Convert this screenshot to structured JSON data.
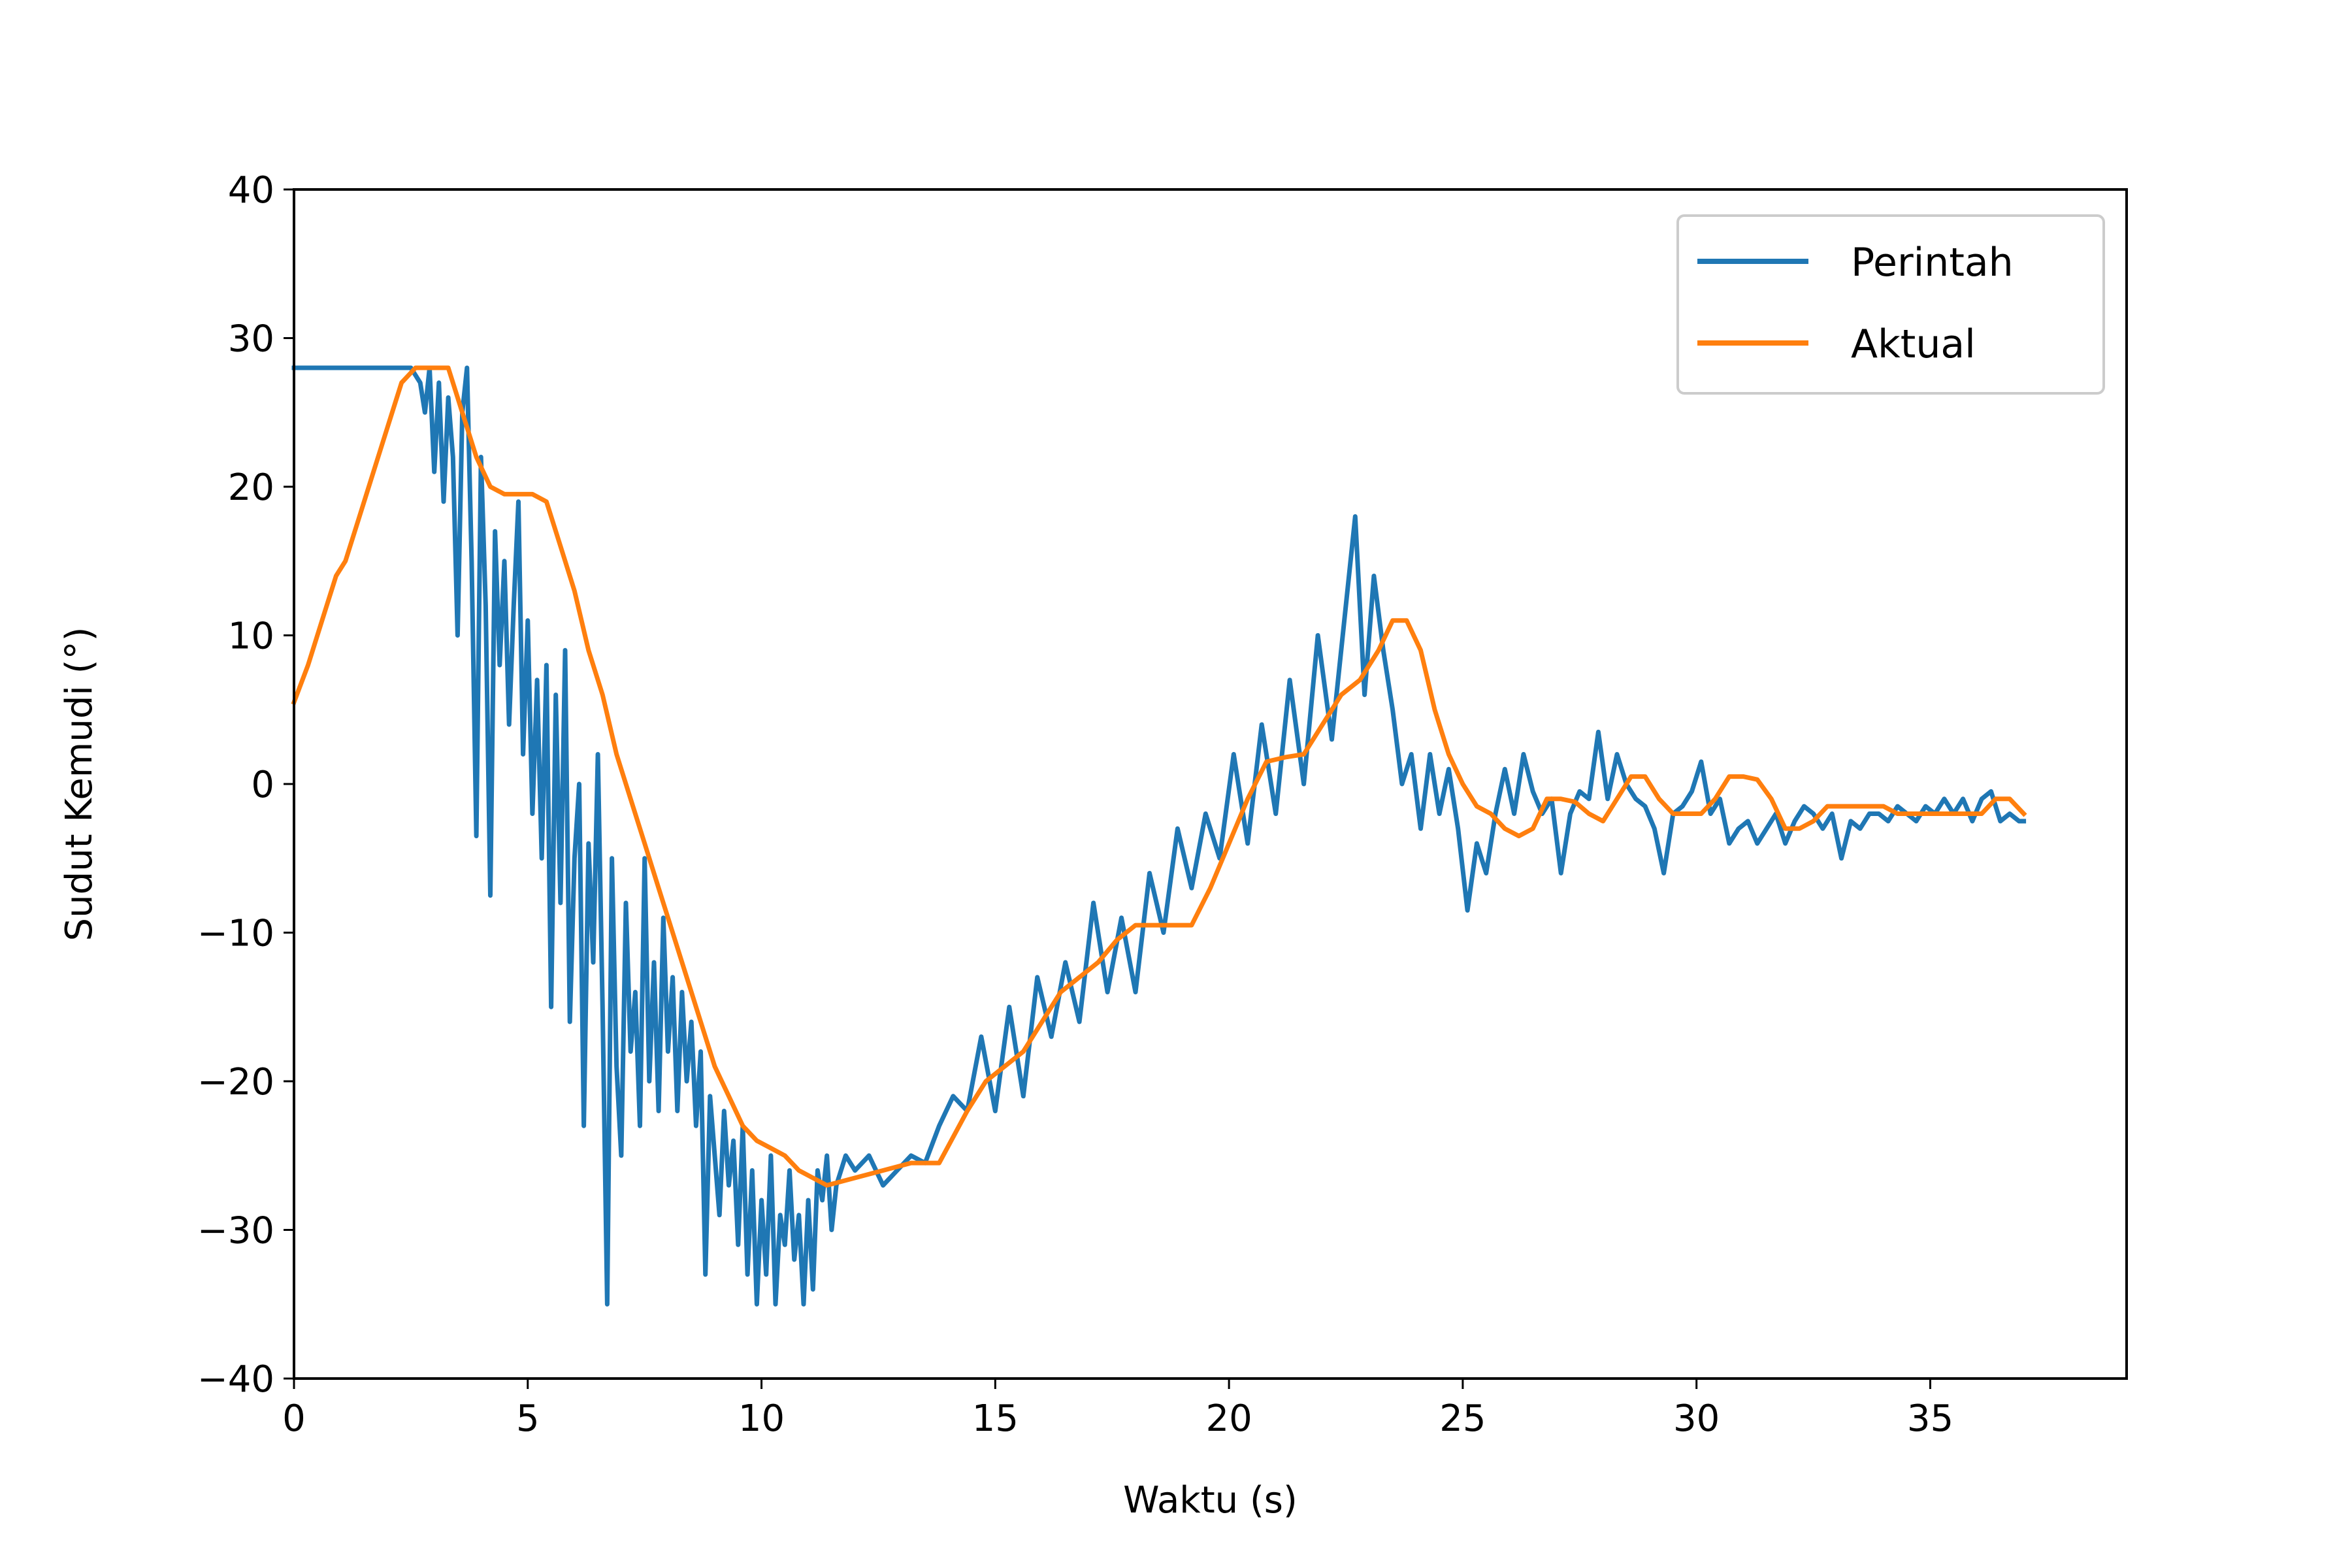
{
  "chart_data": {
    "type": "line",
    "title": "",
    "xlabel": "Waktu (s)",
    "ylabel": "Sudut Kemudi (°)",
    "xlim": [
      0,
      39.2
    ],
    "ylim": [
      -40,
      40
    ],
    "xticks": [
      0,
      5,
      10,
      15,
      20,
      25,
      30,
      35
    ],
    "yticks": [
      -40,
      -30,
      -20,
      -10,
      0,
      10,
      20,
      30,
      40
    ],
    "xtick_labels": [
      "0",
      "5",
      "10",
      "15",
      "20",
      "25",
      "30",
      "35"
    ],
    "ytick_labels": [
      "−40",
      "−30",
      "−20",
      "−10",
      "0",
      "10",
      "20",
      "30",
      "40"
    ],
    "grid": false,
    "legend_position": "top-right",
    "series": [
      {
        "name": "Perintah",
        "color": "#1f77b4",
        "points": [
          [
            0,
            28
          ],
          [
            2.5,
            28
          ],
          [
            2.7,
            27
          ],
          [
            2.8,
            25
          ],
          [
            2.9,
            28
          ],
          [
            3.0,
            21
          ],
          [
            3.1,
            27
          ],
          [
            3.2,
            19
          ],
          [
            3.3,
            26
          ],
          [
            3.4,
            22
          ],
          [
            3.5,
            10
          ],
          [
            3.6,
            25
          ],
          [
            3.7,
            28
          ],
          [
            3.8,
            15
          ],
          [
            3.9,
            -3.5
          ],
          [
            4.0,
            22
          ],
          [
            4.1,
            12
          ],
          [
            4.2,
            -7.5
          ],
          [
            4.3,
            17
          ],
          [
            4.4,
            8
          ],
          [
            4.5,
            15
          ],
          [
            4.6,
            4
          ],
          [
            4.7,
            12
          ],
          [
            4.8,
            19
          ],
          [
            4.9,
            2
          ],
          [
            5.0,
            11
          ],
          [
            5.1,
            -2
          ],
          [
            5.2,
            7
          ],
          [
            5.3,
            -5
          ],
          [
            5.4,
            8
          ],
          [
            5.5,
            -15
          ],
          [
            5.6,
            6
          ],
          [
            5.7,
            -8
          ],
          [
            5.8,
            9
          ],
          [
            5.9,
            -16
          ],
          [
            6.0,
            -5
          ],
          [
            6.1,
            0
          ],
          [
            6.2,
            -23
          ],
          [
            6.3,
            -4
          ],
          [
            6.4,
            -12
          ],
          [
            6.5,
            2
          ],
          [
            6.6,
            -15
          ],
          [
            6.7,
            -35
          ],
          [
            6.8,
            -5
          ],
          [
            6.9,
            -19
          ],
          [
            7.0,
            -25
          ],
          [
            7.1,
            -8
          ],
          [
            7.2,
            -18
          ],
          [
            7.3,
            -14
          ],
          [
            7.4,
            -23
          ],
          [
            7.5,
            -5
          ],
          [
            7.6,
            -20
          ],
          [
            7.7,
            -12
          ],
          [
            7.8,
            -22
          ],
          [
            7.9,
            -9
          ],
          [
            8.0,
            -18
          ],
          [
            8.1,
            -13
          ],
          [
            8.2,
            -22
          ],
          [
            8.3,
            -14
          ],
          [
            8.4,
            -20
          ],
          [
            8.5,
            -16
          ],
          [
            8.6,
            -23
          ],
          [
            8.7,
            -18
          ],
          [
            8.8,
            -33
          ],
          [
            8.9,
            -21
          ],
          [
            9.0,
            -25
          ],
          [
            9.1,
            -29
          ],
          [
            9.2,
            -22
          ],
          [
            9.3,
            -27
          ],
          [
            9.4,
            -24
          ],
          [
            9.5,
            -31
          ],
          [
            9.6,
            -23
          ],
          [
            9.7,
            -33
          ],
          [
            9.8,
            -26
          ],
          [
            9.9,
            -35
          ],
          [
            10.0,
            -28
          ],
          [
            10.1,
            -33
          ],
          [
            10.2,
            -25
          ],
          [
            10.3,
            -35
          ],
          [
            10.4,
            -29
          ],
          [
            10.5,
            -31
          ],
          [
            10.6,
            -26
          ],
          [
            10.7,
            -32
          ],
          [
            10.8,
            -29
          ],
          [
            10.9,
            -35
          ],
          [
            11.0,
            -28
          ],
          [
            11.1,
            -34
          ],
          [
            11.2,
            -26
          ],
          [
            11.3,
            -28
          ],
          [
            11.4,
            -25
          ],
          [
            11.5,
            -30
          ],
          [
            11.6,
            -27
          ],
          [
            11.8,
            -25
          ],
          [
            12.0,
            -26
          ],
          [
            12.3,
            -25
          ],
          [
            12.6,
            -27
          ],
          [
            12.9,
            -26
          ],
          [
            13.2,
            -25
          ],
          [
            13.5,
            -25.5
          ],
          [
            13.8,
            -23
          ],
          [
            14.1,
            -21
          ],
          [
            14.4,
            -22
          ],
          [
            14.7,
            -17
          ],
          [
            15.0,
            -22
          ],
          [
            15.3,
            -15
          ],
          [
            15.6,
            -21
          ],
          [
            15.9,
            -13
          ],
          [
            16.2,
            -17
          ],
          [
            16.5,
            -12
          ],
          [
            16.8,
            -16
          ],
          [
            17.1,
            -8
          ],
          [
            17.4,
            -14
          ],
          [
            17.7,
            -9
          ],
          [
            18.0,
            -14
          ],
          [
            18.3,
            -6
          ],
          [
            18.6,
            -10
          ],
          [
            18.9,
            -3
          ],
          [
            19.2,
            -7
          ],
          [
            19.5,
            -2
          ],
          [
            19.8,
            -5
          ],
          [
            20.1,
            2
          ],
          [
            20.4,
            -4
          ],
          [
            20.7,
            4
          ],
          [
            21.0,
            -2
          ],
          [
            21.3,
            7
          ],
          [
            21.6,
            0
          ],
          [
            21.9,
            10
          ],
          [
            22.2,
            3
          ],
          [
            22.5,
            12
          ],
          [
            22.7,
            18
          ],
          [
            22.9,
            6
          ],
          [
            23.1,
            14
          ],
          [
            23.3,
            9
          ],
          [
            23.5,
            5
          ],
          [
            23.7,
            0
          ],
          [
            23.9,
            2
          ],
          [
            24.1,
            -3
          ],
          [
            24.3,
            2
          ],
          [
            24.5,
            -2
          ],
          [
            24.7,
            1
          ],
          [
            24.9,
            -3
          ],
          [
            25.1,
            -8.5
          ],
          [
            25.3,
            -4
          ],
          [
            25.5,
            -6
          ],
          [
            25.7,
            -2
          ],
          [
            25.9,
            1
          ],
          [
            26.1,
            -2
          ],
          [
            26.3,
            2
          ],
          [
            26.5,
            -0.5
          ],
          [
            26.7,
            -2
          ],
          [
            26.9,
            -1
          ],
          [
            27.1,
            -6
          ],
          [
            27.3,
            -2
          ],
          [
            27.5,
            -0.5
          ],
          [
            27.7,
            -1
          ],
          [
            27.9,
            3.5
          ],
          [
            28.1,
            -1
          ],
          [
            28.3,
            2
          ],
          [
            28.5,
            0
          ],
          [
            28.7,
            -1
          ],
          [
            28.9,
            -1.5
          ],
          [
            29.1,
            -3
          ],
          [
            29.3,
            -6
          ],
          [
            29.5,
            -2
          ],
          [
            29.7,
            -1.5
          ],
          [
            29.9,
            -0.5
          ],
          [
            30.1,
            1.5
          ],
          [
            30.3,
            -2
          ],
          [
            30.5,
            -1
          ],
          [
            30.7,
            -4
          ],
          [
            30.9,
            -3
          ],
          [
            31.1,
            -2.5
          ],
          [
            31.3,
            -4
          ],
          [
            31.5,
            -3
          ],
          [
            31.7,
            -2
          ],
          [
            31.9,
            -4
          ],
          [
            32.1,
            -2.5
          ],
          [
            32.3,
            -1.5
          ],
          [
            32.5,
            -2
          ],
          [
            32.7,
            -3
          ],
          [
            32.9,
            -2
          ],
          [
            33.1,
            -5
          ],
          [
            33.3,
            -2.5
          ],
          [
            33.5,
            -3
          ],
          [
            33.7,
            -2
          ],
          [
            33.9,
            -2
          ],
          [
            34.1,
            -2.5
          ],
          [
            34.3,
            -1.5
          ],
          [
            34.5,
            -2
          ],
          [
            34.7,
            -2.5
          ],
          [
            34.9,
            -1.5
          ],
          [
            35.1,
            -2
          ],
          [
            35.3,
            -1
          ],
          [
            35.5,
            -2
          ],
          [
            35.7,
            -1
          ],
          [
            35.9,
            -2.5
          ],
          [
            36.1,
            -1
          ],
          [
            36.3,
            -0.5
          ],
          [
            36.5,
            -2.5
          ],
          [
            36.7,
            -2
          ],
          [
            36.9,
            -2.5
          ],
          [
            37.0,
            -2.5
          ]
        ]
      },
      {
        "name": "Aktual",
        "color": "#ff7f0e",
        "points": [
          [
            0,
            5.5
          ],
          [
            0.3,
            8
          ],
          [
            0.6,
            11
          ],
          [
            0.9,
            14
          ],
          [
            1.1,
            15
          ],
          [
            1.4,
            18
          ],
          [
            1.7,
            21
          ],
          [
            2.0,
            24
          ],
          [
            2.3,
            27
          ],
          [
            2.6,
            28
          ],
          [
            3.0,
            28
          ],
          [
            3.3,
            28
          ],
          [
            3.6,
            25
          ],
          [
            3.9,
            22
          ],
          [
            4.2,
            20
          ],
          [
            4.5,
            19.5
          ],
          [
            4.8,
            19.5
          ],
          [
            5.1,
            19.5
          ],
          [
            5.4,
            19
          ],
          [
            5.7,
            16
          ],
          [
            6.0,
            13
          ],
          [
            6.3,
            9
          ],
          [
            6.6,
            6
          ],
          [
            6.9,
            2
          ],
          [
            7.2,
            -1
          ],
          [
            7.5,
            -4
          ],
          [
            7.8,
            -7
          ],
          [
            8.1,
            -10
          ],
          [
            8.4,
            -13
          ],
          [
            8.7,
            -16
          ],
          [
            9.0,
            -19
          ],
          [
            9.3,
            -21
          ],
          [
            9.6,
            -23
          ],
          [
            9.9,
            -24
          ],
          [
            10.2,
            -24.5
          ],
          [
            10.5,
            -25
          ],
          [
            10.8,
            -26
          ],
          [
            11.4,
            -27
          ],
          [
            12.0,
            -26.5
          ],
          [
            12.6,
            -26
          ],
          [
            13.2,
            -25.5
          ],
          [
            13.8,
            -25.5
          ],
          [
            14.4,
            -22
          ],
          [
            14.8,
            -20
          ],
          [
            15.2,
            -19
          ],
          [
            15.6,
            -18
          ],
          [
            16.0,
            -16
          ],
          [
            16.4,
            -14
          ],
          [
            16.8,
            -13
          ],
          [
            17.2,
            -12
          ],
          [
            17.6,
            -10.5
          ],
          [
            18.0,
            -9.5
          ],
          [
            18.6,
            -9.5
          ],
          [
            19.2,
            -9.5
          ],
          [
            19.6,
            -7
          ],
          [
            20.0,
            -4
          ],
          [
            20.4,
            -1
          ],
          [
            20.8,
            1.5
          ],
          [
            21.2,
            1.8
          ],
          [
            21.6,
            2
          ],
          [
            22.0,
            4
          ],
          [
            22.4,
            6
          ],
          [
            22.8,
            7
          ],
          [
            23.2,
            9
          ],
          [
            23.5,
            11
          ],
          [
            23.8,
            11
          ],
          [
            24.1,
            9
          ],
          [
            24.4,
            5
          ],
          [
            24.7,
            2
          ],
          [
            25.0,
            0
          ],
          [
            25.3,
            -1.5
          ],
          [
            25.6,
            -2
          ],
          [
            25.9,
            -3
          ],
          [
            26.2,
            -3.5
          ],
          [
            26.5,
            -3
          ],
          [
            26.8,
            -1
          ],
          [
            27.1,
            -1
          ],
          [
            27.4,
            -1.2
          ],
          [
            27.7,
            -2
          ],
          [
            28.0,
            -2.5
          ],
          [
            28.3,
            -1
          ],
          [
            28.6,
            0.5
          ],
          [
            28.9,
            0.5
          ],
          [
            29.2,
            -1
          ],
          [
            29.5,
            -2
          ],
          [
            29.8,
            -2
          ],
          [
            30.1,
            -2
          ],
          [
            30.4,
            -1
          ],
          [
            30.7,
            0.5
          ],
          [
            31.0,
            0.5
          ],
          [
            31.3,
            0.3
          ],
          [
            31.6,
            -1
          ],
          [
            31.9,
            -3
          ],
          [
            32.2,
            -3
          ],
          [
            32.5,
            -2.5
          ],
          [
            32.8,
            -1.5
          ],
          [
            33.1,
            -1.5
          ],
          [
            33.4,
            -1.5
          ],
          [
            33.7,
            -1.5
          ],
          [
            34.0,
            -1.5
          ],
          [
            34.3,
            -2
          ],
          [
            34.6,
            -2
          ],
          [
            34.9,
            -2
          ],
          [
            35.2,
            -2
          ],
          [
            35.5,
            -2
          ],
          [
            35.8,
            -2
          ],
          [
            36.1,
            -2
          ],
          [
            36.4,
            -1
          ],
          [
            36.7,
            -1
          ],
          [
            37.0,
            -2
          ]
        ]
      }
    ]
  }
}
